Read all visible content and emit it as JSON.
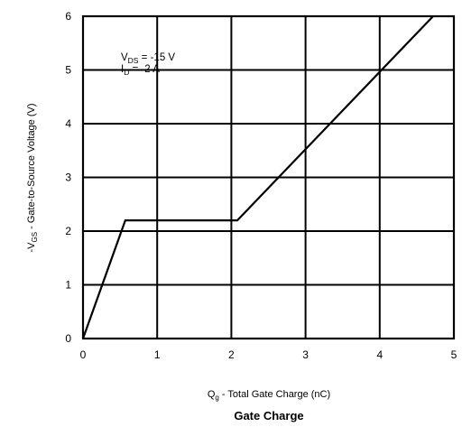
{
  "chart_data": {
    "type": "line",
    "title": "Gate Charge",
    "xlabel_main": "Q",
    "xlabel_sub": "g",
    "xlabel_rest": " - Total Gate Charge (nC)",
    "ylabel_prefix": "-V",
    "ylabel_sub": "GS",
    "ylabel_rest": " - Gate-to-Source Voltage (V)",
    "xlim": [
      0,
      5
    ],
    "ylim": [
      0,
      6
    ],
    "x_ticks": [
      "0",
      "1",
      "2",
      "3",
      "4",
      "5"
    ],
    "y_ticks": [
      "0",
      "1",
      "2",
      "3",
      "4",
      "5",
      "6"
    ],
    "grid": true,
    "series": [
      {
        "x": [
          0,
          0.57,
          2.08,
          4.72
        ],
        "y": [
          0,
          2.2,
          2.2,
          6.0
        ]
      }
    ],
    "annotation": {
      "line1_main": "V",
      "line1_sub": "DS",
      "line1_rest": " = -15 V",
      "line2_main": "I",
      "line2_sub": "D",
      "line2_rest": " = -2 A"
    }
  }
}
